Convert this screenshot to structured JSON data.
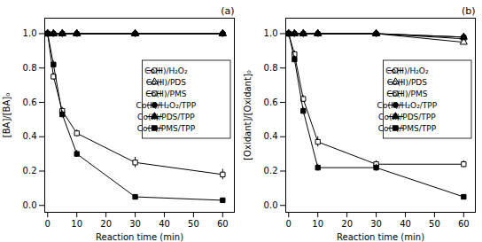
{
  "chart_data": [
    {
      "type": "line",
      "title": "(a)",
      "xlabel": "Reaction time (min)",
      "ylabel": "[BA]/[BA]₀",
      "x": [
        0,
        2,
        5,
        10,
        30,
        60
      ],
      "series": [
        {
          "name": "Co(II)/H₂O₂",
          "values": [
            1.0,
            1.0,
            1.0,
            1.0,
            1.0,
            1.0
          ],
          "yerr": [
            0,
            0,
            0,
            0,
            0,
            0
          ],
          "marker": "circle-open",
          "color": "black",
          "line_style": "solid"
        },
        {
          "name": "Co(II)/PDS",
          "values": [
            1.0,
            1.0,
            1.0,
            1.0,
            1.0,
            1.0
          ],
          "yerr": [
            0,
            0,
            0,
            0,
            0,
            0
          ],
          "marker": "triangle-open",
          "color": "black",
          "line_style": "solid"
        },
        {
          "name": "Co(II)/PMS",
          "values": [
            1.0,
            0.75,
            0.55,
            0.42,
            0.25,
            0.18
          ],
          "yerr": [
            0,
            0.02,
            0.02,
            0.02,
            0.03,
            0.03
          ],
          "marker": "square-open",
          "color": "black",
          "line_style": "solid"
        },
        {
          "name": "Co(II)/H₂O₂/TPP",
          "values": [
            1.0,
            1.0,
            1.0,
            1.0,
            1.0,
            1.0
          ],
          "yerr": [
            0,
            0,
            0,
            0,
            0,
            0
          ],
          "marker": "circle-filled",
          "color": "black",
          "line_style": "solid"
        },
        {
          "name": "Co(II)/PDS/TPP",
          "values": [
            1.0,
            1.0,
            1.0,
            1.0,
            1.0,
            1.0
          ],
          "yerr": [
            0,
            0,
            0,
            0,
            0,
            0
          ],
          "marker": "triangle-filled",
          "color": "black",
          "line_style": "solid"
        },
        {
          "name": "Co(II)/PMS/TPP",
          "values": [
            1.0,
            0.82,
            0.53,
            0.3,
            0.05,
            0.03
          ],
          "yerr": [
            0,
            0.02,
            0.02,
            0.02,
            0.01,
            0.01
          ],
          "marker": "square-filled",
          "color": "black",
          "line_style": "solid"
        }
      ],
      "xlim": [
        -1,
        64
      ],
      "ylim": [
        -0.04,
        1.09
      ],
      "xticks": [
        0,
        10,
        20,
        30,
        40,
        50,
        60
      ],
      "yticks": [
        {
          "value": 0.0,
          "label": "0.0"
        },
        0.2,
        0.4,
        0.6,
        0.8,
        {
          "value": 1.0,
          "label": "1.0"
        }
      ],
      "grid": false,
      "legend": "right"
    },
    {
      "type": "line",
      "title": "(b)",
      "xlabel": "Reaction time (min)",
      "ylabel": "[Oxidant]/[Oxidant]₀",
      "x": [
        0,
        2,
        5,
        10,
        30,
        60
      ],
      "series": [
        {
          "name": "Co(II)/H₂O₂",
          "values": [
            1.0,
            1.0,
            1.0,
            1.0,
            1.0,
            0.97
          ],
          "yerr": [
            0,
            0,
            0,
            0,
            0,
            0.01
          ],
          "marker": "circle-open",
          "color": "black",
          "line_style": "solid"
        },
        {
          "name": "Co(II)/PDS",
          "values": [
            1.0,
            1.0,
            1.0,
            1.0,
            1.0,
            0.95
          ],
          "yerr": [
            0,
            0,
            0,
            0,
            0,
            0.01
          ],
          "marker": "triangle-open",
          "color": "black",
          "line_style": "solid"
        },
        {
          "name": "Co(II)/PMS",
          "values": [
            1.0,
            0.88,
            0.62,
            0.37,
            0.24,
            0.24
          ],
          "yerr": [
            0,
            0.02,
            0.02,
            0.03,
            0.02,
            0.02
          ],
          "marker": "square-open",
          "color": "black",
          "line_style": "solid"
        },
        {
          "name": "Co(II)/H₂O₂/TPP",
          "values": [
            1.0,
            1.0,
            1.0,
            1.0,
            1.0,
            0.98
          ],
          "yerr": [
            0,
            0,
            0,
            0,
            0,
            0
          ],
          "marker": "circle-filled",
          "color": "black",
          "line_style": "solid"
        },
        {
          "name": "Co(II)/PDS/TPP",
          "values": [
            1.0,
            1.0,
            1.0,
            1.0,
            1.0,
            0.98
          ],
          "yerr": [
            0,
            0,
            0,
            0,
            0,
            0
          ],
          "marker": "triangle-filled",
          "color": "black",
          "line_style": "solid"
        },
        {
          "name": "Co(II)/PMS/TPP",
          "values": [
            1.0,
            0.85,
            0.55,
            0.22,
            0.22,
            0.05
          ],
          "yerr": [
            0,
            0.02,
            0.02,
            0.02,
            0.02,
            0.01
          ],
          "marker": "square-filled",
          "color": "black",
          "line_style": "solid"
        }
      ],
      "xlim": [
        -1,
        64
      ],
      "ylim": [
        -0.04,
        1.09
      ],
      "xticks": [
        0,
        10,
        20,
        30,
        40,
        50,
        60
      ],
      "yticks": [
        {
          "value": 0.0,
          "label": "0.0"
        },
        0.2,
        0.4,
        0.6,
        0.8,
        {
          "value": 1.0,
          "label": "1.0"
        }
      ],
      "grid": false,
      "legend": "right"
    }
  ]
}
